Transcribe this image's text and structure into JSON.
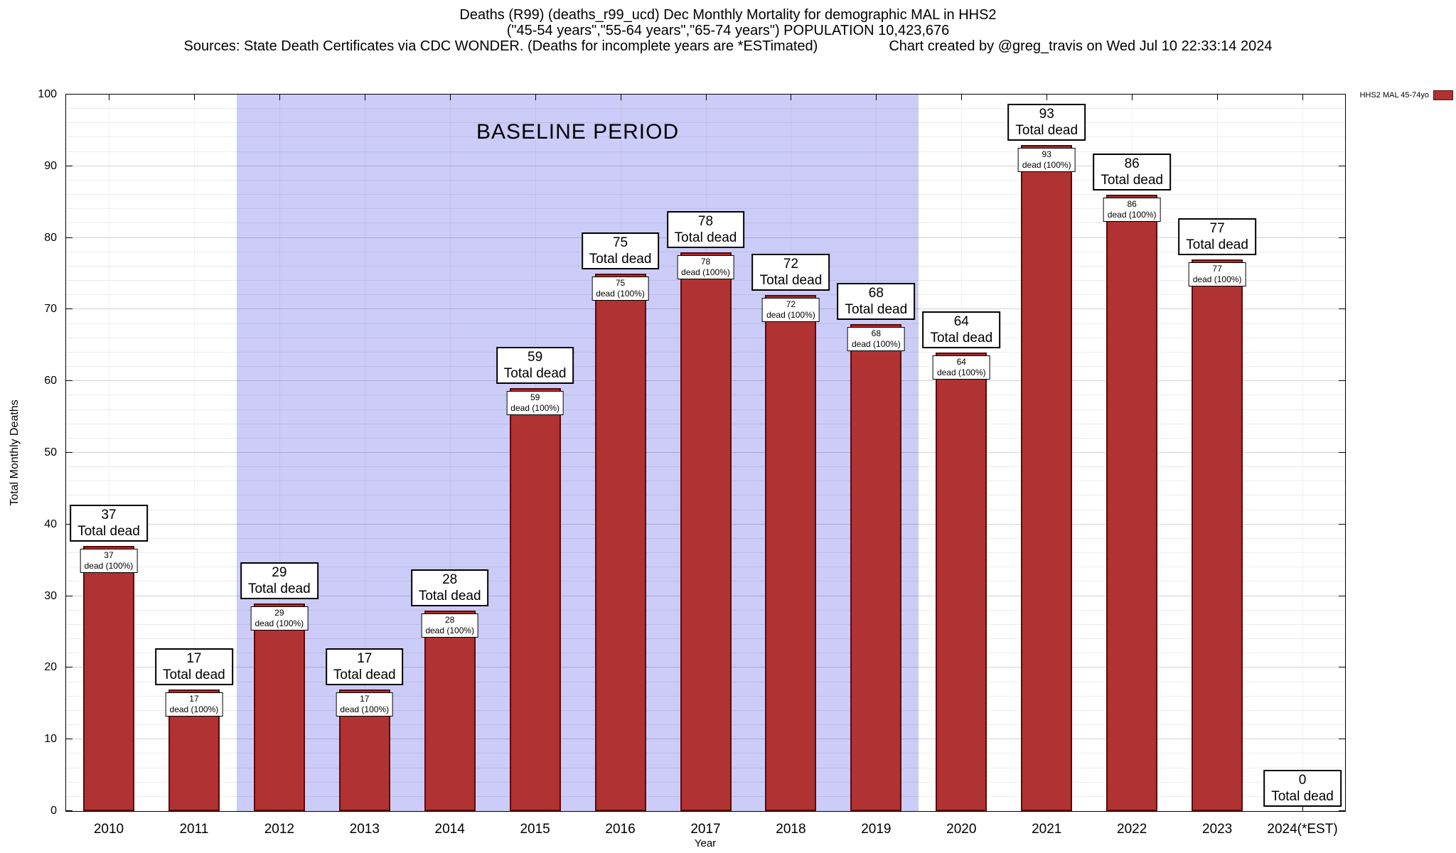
{
  "header": {
    "line1": "Deaths (R99) (deaths_r99_ucd) Dec Monthly Mortality for demographic MAL in HHS2",
    "line2": "(\"45-54 years\",\"55-64 years\",\"65-74 years\") POPULATION 10,423,676",
    "line3_left": "Sources: State Death Certificates via CDC WONDER. (Deaths for incomplete years are *ESTimated)",
    "line3_right": "Chart created by @greg_travis on Wed Jul 10 22:33:14 2024"
  },
  "legend": {
    "label": "HHS2 MAL 45-74yo",
    "swatch_fill": "#b03232",
    "swatch_border": "#5a0a0a"
  },
  "labels": {
    "total_dead": "Total dead",
    "dead_pct": "dead (100%)"
  },
  "chart_data": {
    "type": "bar",
    "title": "Deaths (R99) (deaths_r99_ucd) Dec Monthly Mortality for demographic MAL in HHS2",
    "xlabel": "Year",
    "ylabel": "Total Monthly Deaths",
    "ylim": [
      0,
      100
    ],
    "y_major_step": 10,
    "y_minor_step": 2,
    "grid": true,
    "legend_position": "top-right",
    "series_name": "HHS2 MAL 45-74yo",
    "categories": [
      "2010",
      "2011",
      "2012",
      "2013",
      "2014",
      "2015",
      "2016",
      "2017",
      "2018",
      "2019",
      "2020",
      "2021",
      "2022",
      "2023",
      "2024(*EST)"
    ],
    "values": [
      37,
      17,
      29,
      17,
      28,
      59,
      75,
      78,
      72,
      68,
      64,
      93,
      86,
      77,
      0
    ],
    "bar_fill": "#b03232",
    "bar_border": "#5a0a0a",
    "baseline": {
      "label": "BASELINE PERIOD",
      "start_category": "2012",
      "end_category": "2019",
      "start_index": 2,
      "end_index": 9,
      "color": "#ccccf8"
    }
  }
}
